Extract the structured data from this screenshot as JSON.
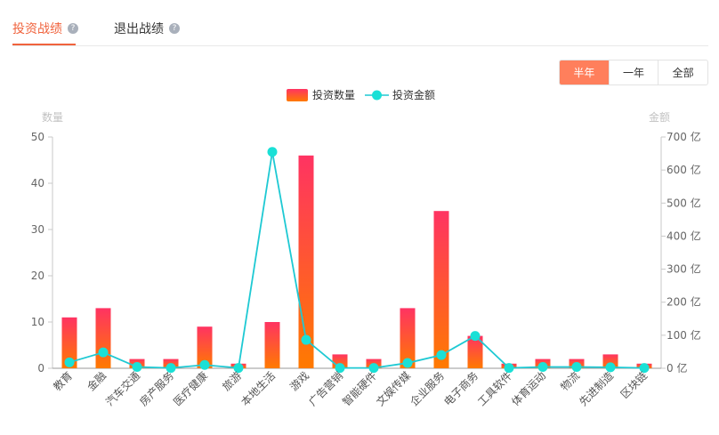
{
  "tabs": [
    {
      "label": "投资战绩",
      "help": "?"
    },
    {
      "label": "退出战绩",
      "help": "?"
    }
  ],
  "range": [
    "半年",
    "一年",
    "全部"
  ],
  "colors": {
    "accent": "#f0633d",
    "bar_top": "#ff3362",
    "bar_bottom": "#ff7a00",
    "line": "#1ec9d3",
    "point": "#1ae0d6"
  },
  "chart_data": {
    "type": "bar",
    "legend": [
      "投资数量",
      "投资金额"
    ],
    "legend_position": "top-center",
    "y_left_label": "数量",
    "y_right_label": "金额",
    "y_left_ticks": [
      "0",
      "10",
      "20",
      "30",
      "40",
      "50"
    ],
    "y_right_ticks": [
      "0 亿",
      "100 亿",
      "200 亿",
      "300 亿",
      "400 亿",
      "500 亿",
      "600 亿",
      "700 亿"
    ],
    "y_left_range": [
      0,
      50
    ],
    "y_right_range": [
      0,
      700
    ],
    "categories": [
      "教育",
      "金融",
      "汽车交通",
      "房产服务",
      "医疗健康",
      "旅游",
      "本地生活",
      "游戏",
      "广告营销",
      "智能硬件",
      "文娱传媒",
      "企业服务",
      "电子商务",
      "工具软件",
      "体育运动",
      "物流",
      "先进制造",
      "区块链"
    ],
    "series": [
      {
        "name": "投资数量",
        "kind": "bar",
        "axis": "left",
        "values": [
          11,
          13,
          2,
          2,
          9,
          1,
          10,
          46,
          3,
          2,
          13,
          34,
          7,
          1,
          2,
          2,
          3,
          1
        ]
      },
      {
        "name": "投资金额",
        "kind": "line",
        "axis": "right",
        "values": [
          18,
          48,
          4,
          1,
          10,
          1,
          655,
          86,
          1,
          1,
          16,
          40,
          98,
          1,
          4,
          4,
          3,
          1
        ]
      }
    ],
    "grid": false
  }
}
